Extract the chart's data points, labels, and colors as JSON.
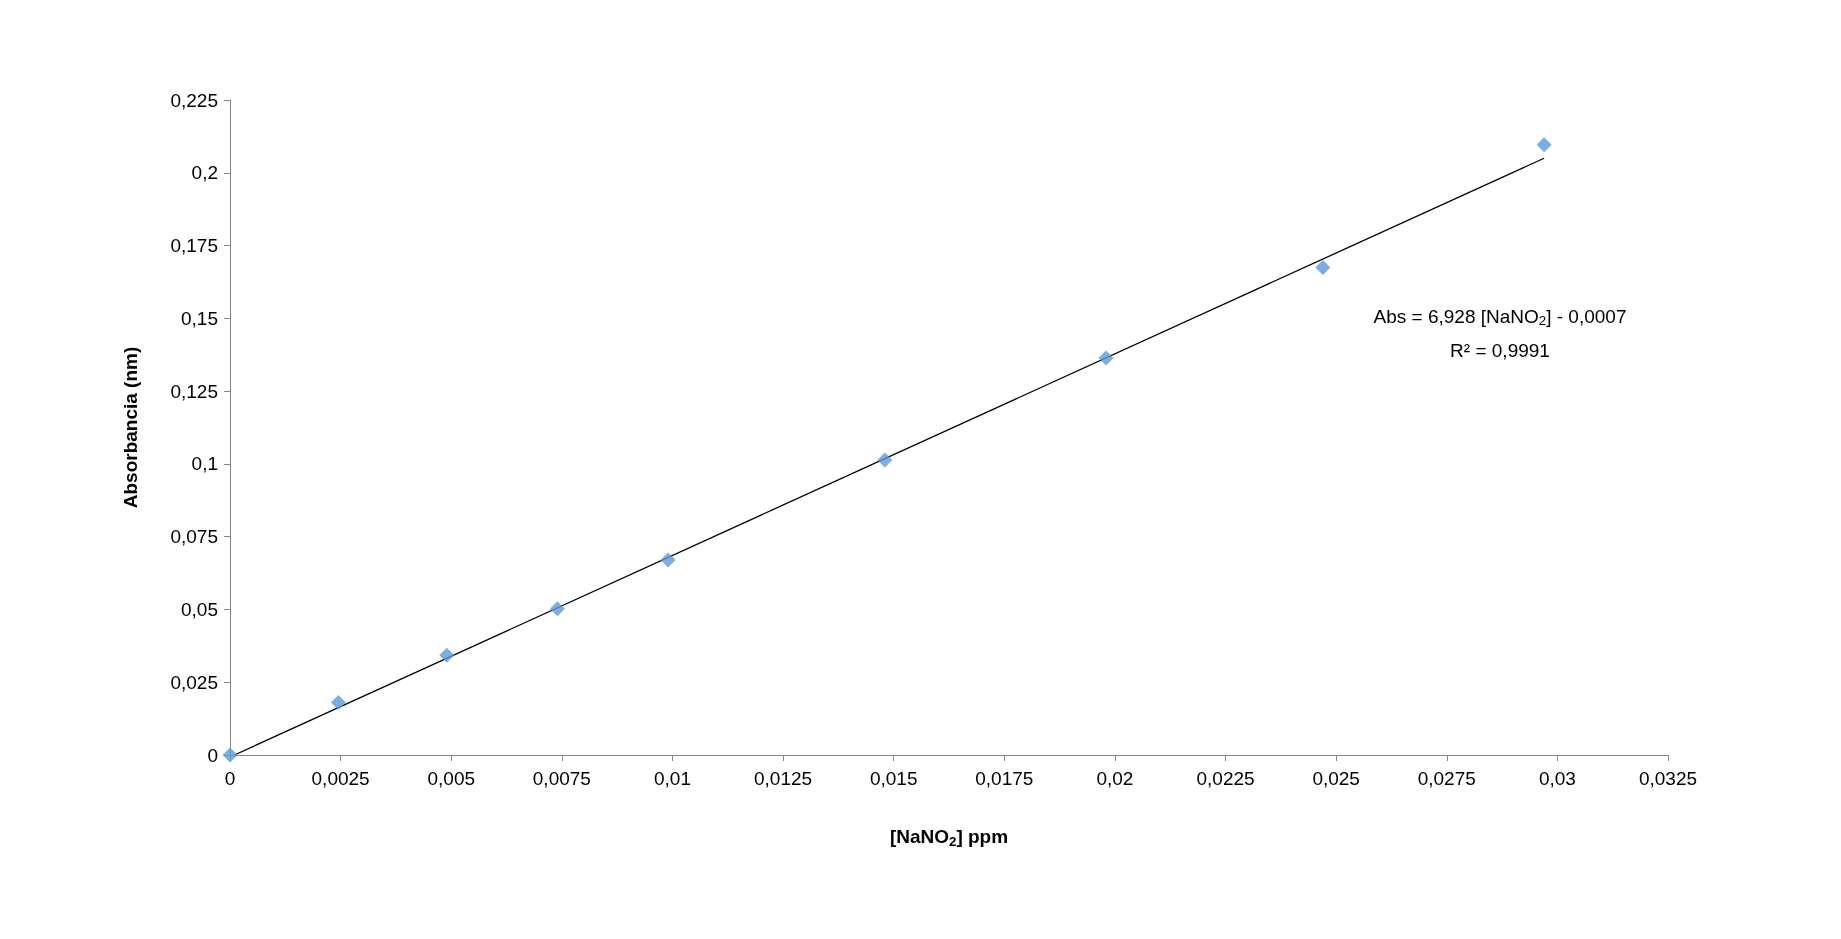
{
  "chart_data": {
    "type": "scatter",
    "xlabel": "[NaNO$_{2}$] ppm",
    "ylabel": "Absorbancia (nm)",
    "series": [
      {
        "color": "#5b9bd5",
        "marker": "diamond",
        "x": [
          0,
          0.00245,
          0.0049,
          0.0074,
          0.0099,
          0.0148,
          0.0198,
          0.0247,
          0.0297
        ],
        "values": [
          0,
          0.018,
          0.0343,
          0.0502,
          0.067,
          0.1013,
          0.1364,
          0.1675,
          0.2096
        ]
      },
      {
        "type": "line",
        "color": "#000000",
        "line_style": "solid",
        "marker": "none",
        "x": [
          0.0001,
          0.0297
        ],
        "values": [
          0,
          0.205
        ]
      }
    ],
    "xlim": [
      0,
      0.0325
    ],
    "xticks": [
      {
        "value": 0,
        "label": "0"
      },
      {
        "value": 0.0025,
        "label": "0,0025"
      },
      {
        "value": 0.005,
        "label": "0,005"
      },
      {
        "value": 0.0075,
        "label": "0,0075"
      },
      {
        "value": 0.01,
        "label": "0,01"
      },
      {
        "value": 0.0125,
        "label": "0,0125"
      },
      {
        "value": 0.015,
        "label": "0,015"
      },
      {
        "value": 0.0175,
        "label": "0,0175"
      },
      {
        "value": 0.02,
        "label": "0,02"
      },
      {
        "value": 0.0225,
        "label": "0,0225"
      },
      {
        "value": 0.025,
        "label": "0,025"
      },
      {
        "value": 0.0275,
        "label": "0,0275"
      },
      {
        "value": 0.03,
        "label": "0,03"
      },
      {
        "value": 0.0325,
        "label": "0,0325"
      }
    ],
    "ylim": [
      0,
      0.225
    ],
    "yticks": [
      {
        "value": 0,
        "label": "0"
      },
      {
        "value": 0.025,
        "label": "0,025"
      },
      {
        "value": 0.05,
        "label": "0,05"
      },
      {
        "value": 0.075,
        "label": "0,075"
      },
      {
        "value": 0.1,
        "label": "0,1"
      },
      {
        "value": 0.125,
        "label": "0,125"
      },
      {
        "value": 0.15,
        "label": "0,15"
      },
      {
        "value": 0.175,
        "label": "0,175"
      },
      {
        "value": 0.2,
        "label": "0,2"
      },
      {
        "value": 0.225,
        "label": "0,225"
      }
    ],
    "grid": false,
    "annotations": [
      "Abs = 6,928 [NaNO$_{2}$] - 0,0007",
      "R² = 0,9991"
    ]
  }
}
